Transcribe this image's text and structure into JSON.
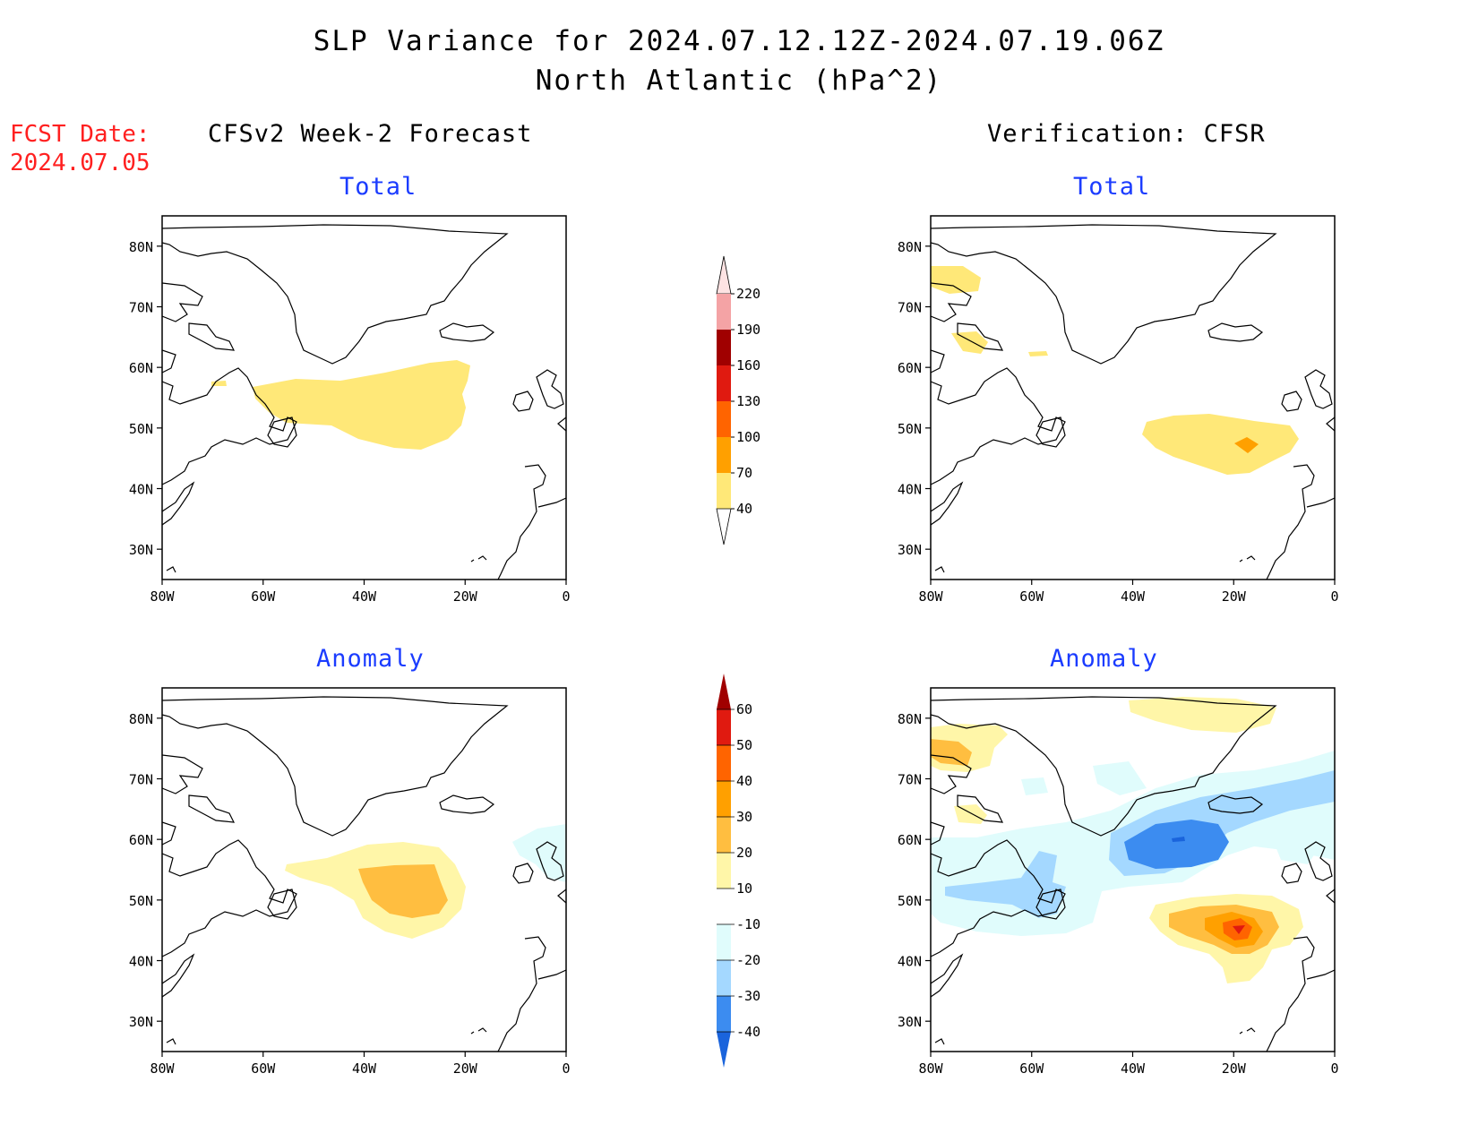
{
  "header": {
    "title_line1": "SLP Variance for 2024.07.12.12Z-2024.07.19.06Z",
    "title_line2": "North Atlantic (hPa^2)"
  },
  "fcst": {
    "label": "FCST Date:",
    "date": "2024.07.05"
  },
  "columns": {
    "left": "CFSv2 Week-2 Forecast",
    "right": "Verification: CFSR"
  },
  "panels": {
    "total_label": "Total",
    "anomaly_label": "Anomaly"
  },
  "axes": {
    "lat_ticks": [
      "80N",
      "70N",
      "60N",
      "50N",
      "40N",
      "30N"
    ],
    "lon_ticks": [
      "80W",
      "60W",
      "40W",
      "20W",
      "0"
    ]
  },
  "colorbar_total": {
    "labels": [
      "220",
      "190",
      "160",
      "130",
      "100",
      "70",
      "40"
    ],
    "colors": [
      "#fde3e3",
      "#f4a3a5",
      "#a00000",
      "#e01a10",
      "#ff6400",
      "#ffa000",
      "#ffe878"
    ]
  },
  "colorbar_anomaly": {
    "labels": [
      "60",
      "50",
      "40",
      "30",
      "20",
      "10",
      "-10",
      "-20",
      "-30",
      "-40"
    ],
    "colors": [
      "#a00000",
      "#e01a10",
      "#ff6400",
      "#ffa000",
      "#ffbe40",
      "#fff6a8",
      "#ffffff",
      "#e0fcfc",
      "#a4d8ff",
      "#3c8cf0",
      "#1a64dc"
    ]
  },
  "colors": {
    "title_blue": "#1b3cff",
    "fcst_red": "#ff2020"
  }
}
